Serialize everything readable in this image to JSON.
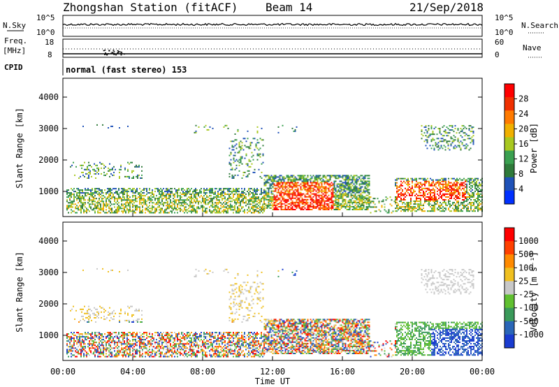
{
  "header": {
    "title": "Zhongshan Station (fitACF)",
    "beam": "Beam 14",
    "date": "21/Sep/2018"
  },
  "panels": {
    "nsky": {
      "label": "N.Sky",
      "ticks": [
        "10^5",
        "10^0"
      ],
      "right_label": "N.Search",
      "right_ticks": [
        "10^5",
        "10^0"
      ]
    },
    "freq": {
      "label_1": "Freq.",
      "label_2": "[MHz]",
      "ticks": [
        "18",
        "8"
      ],
      "right_label": "Nave",
      "right_ticks": [
        "60",
        "0"
      ]
    },
    "cpid": {
      "label": "CPID",
      "text": "normal (fast stereo) 153"
    }
  },
  "chart_data": [
    {
      "type": "heatmap",
      "name": "power",
      "ylabel": "Slant Range [km]",
      "xlabel": "",
      "xlim": [
        0,
        24
      ],
      "ylim": [
        200,
        4600
      ],
      "y_ticks": [
        "4000",
        "3000",
        "2000",
        "1000"
      ],
      "colorbar": {
        "label": "Power [dB]",
        "ticks": [
          "28",
          "24",
          "20",
          "16",
          "12",
          "8",
          "4"
        ],
        "colors": [
          "#0030ff",
          "#1f52b8",
          "#2f7a3a",
          "#3aa050",
          "#a8c820",
          "#f0b000",
          "#ff7a00",
          "#f03000",
          "#ff0000"
        ]
      }
    },
    {
      "type": "heatmap",
      "name": "velocity",
      "ylabel": "Slant Range [km]",
      "xlabel": "Time UT",
      "xlim": [
        0,
        24
      ],
      "ylim": [
        200,
        4600
      ],
      "x_ticks": [
        "00:00",
        "04:00",
        "08:00",
        "12:00",
        "16:00",
        "20:00",
        "00:00"
      ],
      "y_ticks": [
        "4000",
        "3000",
        "2000",
        "1000"
      ],
      "colorbar": {
        "label": "Velocity [m s⁻¹]",
        "ticks": [
          "1000",
          "500",
          "100",
          "25",
          "-25",
          "-100",
          "-500",
          "-1000"
        ],
        "colors": [
          "#1a3cd0",
          "#2a66b8",
          "#3a9a5a",
          "#60c030",
          "#c8c8c8",
          "#f0c020",
          "#ff8a00",
          "#ff4000",
          "#ff0000"
        ]
      }
    }
  ]
}
